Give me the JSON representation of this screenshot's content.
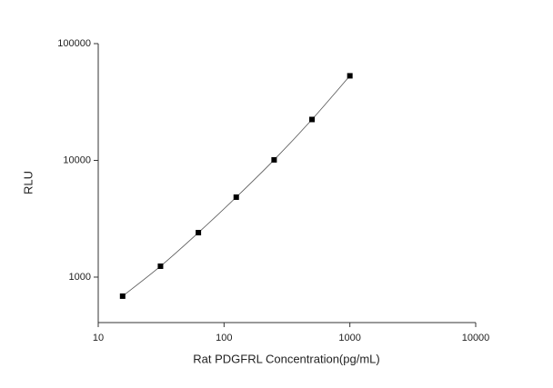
{
  "chart_data": {
    "type": "scatter",
    "x_label": "Rat PDGFRL Concentration(pg/mL)",
    "y_label": "RLU",
    "x_scale": "log",
    "y_scale": "log",
    "xlim": [
      10,
      10000
    ],
    "xticks": [
      10,
      100,
      1000,
      10000
    ],
    "ylim": [
      408,
      100000
    ],
    "yticks": [
      1000,
      10000,
      100000
    ],
    "grid": false,
    "fit_line": true,
    "series": [
      {
        "color": "#000000",
        "x": [
          15.625,
          31.25,
          62.5,
          125,
          250,
          500,
          1000
        ],
        "values": [
          687,
          1240,
          2404,
          4840,
          10100,
          22400,
          53000
        ]
      }
    ]
  }
}
